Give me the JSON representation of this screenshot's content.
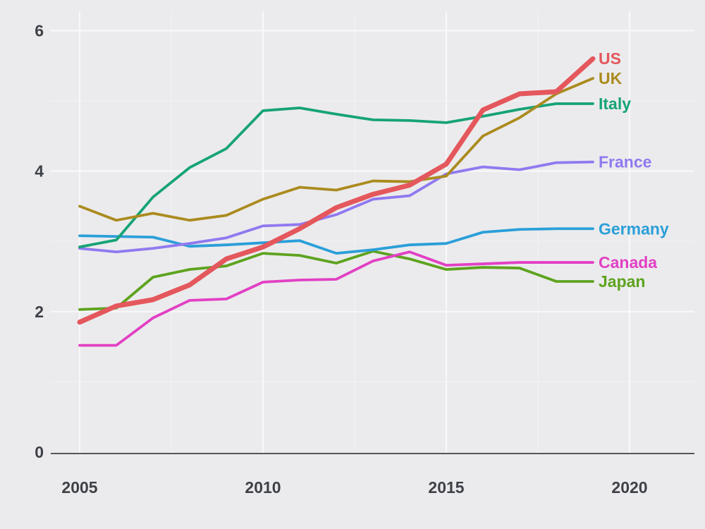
{
  "chart_data": {
    "type": "line",
    "title": "",
    "xlabel": "",
    "ylabel": "",
    "x": [
      2005,
      2006,
      2007,
      2008,
      2009,
      2010,
      2011,
      2012,
      2013,
      2014,
      2015,
      2016,
      2017,
      2018,
      2019
    ],
    "series": [
      {
        "name": "US",
        "color": "#e4575c",
        "line_width": 7,
        "values": [
          1.85,
          2.08,
          2.17,
          2.38,
          2.75,
          2.92,
          3.18,
          3.48,
          3.67,
          3.8,
          4.1,
          4.87,
          5.1,
          5.13,
          5.6
        ]
      },
      {
        "name": "UK",
        "color": "#ab8b1f",
        "line_width": 3.8,
        "values": [
          3.5,
          3.3,
          3.4,
          3.3,
          3.37,
          3.6,
          3.77,
          3.73,
          3.86,
          3.85,
          3.93,
          4.5,
          4.76,
          5.1,
          5.32
        ]
      },
      {
        "name": "Italy",
        "color": "#16a376",
        "line_width": 3.8,
        "values": [
          2.92,
          3.02,
          3.63,
          4.05,
          4.32,
          4.86,
          4.9,
          4.81,
          4.73,
          4.72,
          4.69,
          4.78,
          4.88,
          4.96,
          4.96
        ]
      },
      {
        "name": "France",
        "color": "#9079f0",
        "line_width": 3.8,
        "values": [
          2.9,
          2.85,
          2.9,
          2.97,
          3.05,
          3.22,
          3.24,
          3.38,
          3.6,
          3.65,
          3.96,
          4.06,
          4.02,
          4.12,
          4.13
        ]
      },
      {
        "name": "Germany",
        "color": "#2b9fd9",
        "line_width": 3.8,
        "values": [
          3.08,
          3.07,
          3.06,
          2.93,
          2.95,
          2.98,
          3.01,
          2.83,
          2.88,
          2.95,
          2.97,
          3.13,
          3.17,
          3.18,
          3.18
        ]
      },
      {
        "name": "Canada",
        "color": "#e240c4",
        "line_width": 3.8,
        "values": [
          1.52,
          1.52,
          1.91,
          2.16,
          2.18,
          2.42,
          2.45,
          2.46,
          2.72,
          2.85,
          2.66,
          2.68,
          2.7,
          2.7,
          2.7
        ]
      },
      {
        "name": "Japan",
        "color": "#5da31f",
        "line_width": 3.8,
        "values": [
          2.03,
          2.05,
          2.49,
          2.6,
          2.65,
          2.83,
          2.8,
          2.69,
          2.86,
          2.75,
          2.6,
          2.63,
          2.62,
          2.43,
          2.43
        ]
      }
    ],
    "x_ticks": [
      {
        "year": 2005,
        "label": "2005"
      },
      {
        "year": 2010,
        "label": "2010"
      },
      {
        "year": 2015,
        "label": "2015"
      },
      {
        "year": 2020,
        "label": "2020"
      }
    ],
    "y_ticks": [
      {
        "value": 0,
        "label": "0"
      },
      {
        "value": 2,
        "label": "2"
      },
      {
        "value": 4,
        "label": "4"
      },
      {
        "value": 6,
        "label": "6"
      }
    ],
    "xlim": [
      2004.2,
      2021.8
    ],
    "ylim": [
      0,
      6.3
    ],
    "grid": {
      "major_y": [
        2,
        4,
        6
      ],
      "minor_y": [
        1,
        3,
        5
      ],
      "major_x": [
        2005,
        2010,
        2015,
        2020
      ],
      "minor_x": [
        2007.5,
        2012.5,
        2017.5
      ]
    },
    "legend_position": "end-of-line-labels-right"
  },
  "colors": {
    "background": "#ebebed",
    "grid_major": "#f8f8f9",
    "grid_minor": "#f1f1f3",
    "axis_line": "#54575c",
    "tick_text": "#3e4147"
  }
}
